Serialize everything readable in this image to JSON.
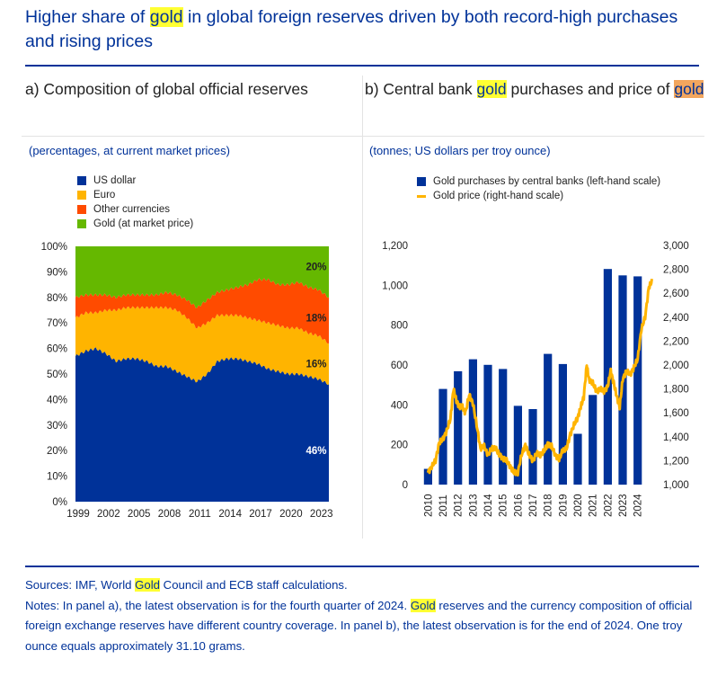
{
  "title": {
    "part1": "Higher share of ",
    "gold": "gold",
    "part2": " in global foreign reserves driven by both record-high purchases and rising prices"
  },
  "panel_a": {
    "title": "a) Composition of global official reserves",
    "unit": "(percentages, at current market prices)"
  },
  "panel_b": {
    "title_part1": "b) Central bank ",
    "title_gold1": "gold",
    "title_part2": " purchases and price of ",
    "title_gold2": "gold",
    "unit": "(tonnes; US dollars per troy ounce)"
  },
  "colors": {
    "usd": "#003299",
    "euro": "#ffb400",
    "other": "#ff4b00",
    "gold_share": "#65b800",
    "bars": "#003299",
    "price_line": "#ffb400",
    "highlight": "#ffff33"
  },
  "chart_data": [
    {
      "type": "area",
      "stacked": true,
      "title": "a) Composition of global official reserves",
      "ylabel": "(percentages, at current market prices)",
      "x": [
        1999,
        2000,
        2001,
        2002,
        2003,
        2004,
        2005,
        2006,
        2007,
        2008,
        2009,
        2010,
        2011,
        2012,
        2013,
        2014,
        2015,
        2016,
        2017,
        2018,
        2019,
        2020,
        2021,
        2022,
        2023,
        2024
      ],
      "x_ticks": [
        "1999",
        "2002",
        "2005",
        "2008",
        "2011",
        "2014",
        "2017",
        "2020",
        "2023"
      ],
      "ylim": [
        0,
        100
      ],
      "y_ticks": [
        "0%",
        "10%",
        "20%",
        "30%",
        "40%",
        "50%",
        "60%",
        "70%",
        "80%",
        "90%",
        "100%"
      ],
      "series": [
        {
          "name": "US dollar",
          "values": [
            57,
            59,
            60,
            58,
            55,
            56,
            56,
            55,
            53,
            53,
            51,
            49,
            47,
            50,
            55,
            56,
            56,
            55,
            54,
            52,
            51,
            50,
            50,
            49,
            48,
            46
          ]
        },
        {
          "name": "Euro",
          "values": [
            15,
            15,
            14,
            17,
            20,
            20,
            20,
            21,
            23,
            23,
            24,
            23,
            21,
            20,
            18,
            17,
            17,
            17,
            17,
            18,
            18,
            18,
            18,
            17,
            17,
            16
          ]
        },
        {
          "name": "Other currencies",
          "values": [
            8,
            7,
            7,
            6,
            5,
            5,
            5,
            5,
            5,
            6,
            6,
            7,
            8,
            9,
            9,
            10,
            11,
            13,
            16,
            17,
            16,
            17,
            18,
            18,
            18,
            18
          ]
        },
        {
          "name": "Gold (at market price)",
          "values": [
            20,
            19,
            19,
            19,
            20,
            19,
            19,
            19,
            19,
            18,
            19,
            21,
            24,
            21,
            18,
            17,
            16,
            15,
            13,
            13,
            15,
            15,
            14,
            16,
            17,
            20
          ]
        }
      ],
      "annotations": [
        "20%",
        "18%",
        "16%",
        "46%"
      ]
    },
    {
      "type": "bar",
      "title": "b) Central bank gold purchases and price of gold",
      "ylabel": "(tonnes; US dollars per troy ounce)",
      "categories": [
        "2010",
        "2011",
        "2012",
        "2013",
        "2014",
        "2015",
        "2016",
        "2017",
        "2018",
        "2019",
        "2020",
        "2021",
        "2022",
        "2023",
        "2024"
      ],
      "series": [
        {
          "name": "Gold purchases by central banks (left-hand scale)",
          "axis": "left",
          "values": [
            79,
            480,
            569,
            629,
            601,
            580,
            395,
            379,
            656,
            605,
            255,
            450,
            1082,
            1050,
            1045
          ]
        },
        {
          "name": "Gold price (right-hand scale)",
          "axis": "right",
          "type": "line",
          "x": [
            2010.0,
            2010.25,
            2010.5,
            2010.75,
            2011.0,
            2011.25,
            2011.5,
            2011.7,
            2011.9,
            2012.1,
            2012.3,
            2012.5,
            2012.75,
            2013.0,
            2013.25,
            2013.5,
            2013.75,
            2014.0,
            2014.25,
            2014.5,
            2014.75,
            2015.0,
            2015.25,
            2015.5,
            2015.75,
            2016.0,
            2016.25,
            2016.5,
            2016.75,
            2017.0,
            2017.25,
            2017.5,
            2017.75,
            2018.0,
            2018.25,
            2018.5,
            2018.75,
            2019.0,
            2019.25,
            2019.5,
            2019.75,
            2020.0,
            2020.2,
            2020.4,
            2020.6,
            2020.75,
            2021.0,
            2021.25,
            2021.5,
            2021.75,
            2022.0,
            2022.2,
            2022.4,
            2022.6,
            2022.8,
            2023.0,
            2023.25,
            2023.5,
            2023.75,
            2024.0,
            2024.25,
            2024.5,
            2024.75,
            2024.95
          ],
          "values": [
            1100,
            1150,
            1200,
            1350,
            1380,
            1450,
            1550,
            1800,
            1700,
            1650,
            1650,
            1600,
            1750,
            1680,
            1500,
            1300,
            1320,
            1250,
            1300,
            1310,
            1250,
            1220,
            1200,
            1150,
            1100,
            1100,
            1250,
            1330,
            1250,
            1200,
            1260,
            1250,
            1280,
            1340,
            1320,
            1250,
            1210,
            1290,
            1300,
            1420,
            1500,
            1560,
            1650,
            1730,
            2000,
            1880,
            1850,
            1780,
            1800,
            1780,
            1820,
            1950,
            1850,
            1740,
            1650,
            1880,
            1950,
            1920,
            1980,
            2050,
            2300,
            2400,
            2650,
            2700
          ]
        }
      ],
      "ylim_left": [
        0,
        1200
      ],
      "y_ticks_left": [
        "0",
        "200",
        "400",
        "600",
        "800",
        "1,000",
        "1,200"
      ],
      "ylim_right": [
        1000,
        3000
      ],
      "y_ticks_right": [
        "1,000",
        "1,200",
        "1,400",
        "1,600",
        "1,800",
        "2,000",
        "2,200",
        "2,400",
        "2,600",
        "2,800",
        "3,000"
      ]
    }
  ],
  "legend_b": {
    "bars": "Gold purchases by central banks (left-hand scale)",
    "line": "Gold price (right-hand scale)"
  },
  "notes": {
    "sources_part1": "Sources: IMF, World ",
    "sources_gold": "Gold",
    "sources_part2": " Council and ECB staff calculations.",
    "notes_part1": "Notes: In panel a), the latest observation is for the fourth quarter of 2024. ",
    "notes_gold": "Gold",
    "notes_part2": " reserves and the currency composition of official foreign exchange reserves have different country coverage. In panel b), the latest observation is for the end of 2024. One troy ounce equals approximately 31.10 grams."
  }
}
